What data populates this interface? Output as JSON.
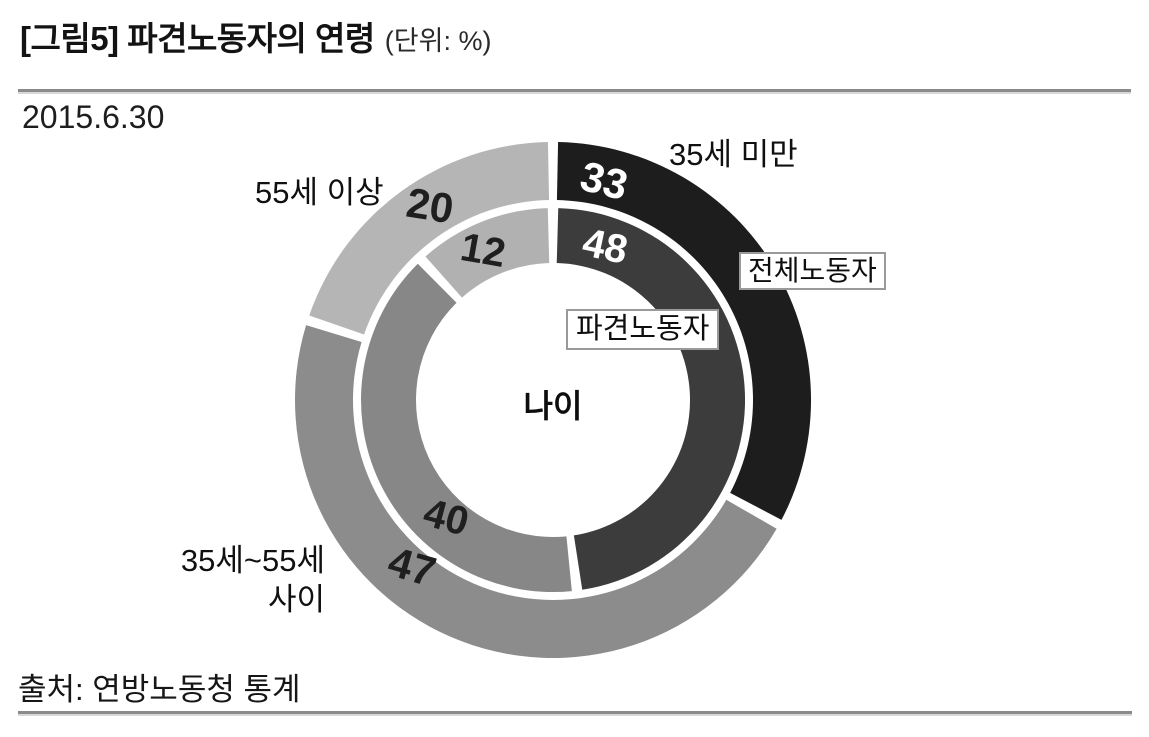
{
  "header": {
    "title": "[그림5] 파견노동자의 연령",
    "unit_note": "(단위: %)",
    "date": "2015.6.30"
  },
  "footer": {
    "source": "출처: 연방노동청 통계"
  },
  "chart_data": {
    "type": "pie",
    "subtype": "double-donut",
    "title": "파견노동자의 연령",
    "unit": "%",
    "center_label": "나이",
    "start_angle": "top",
    "direction": "clockwise",
    "categories": [
      "35세 미만",
      "35세~55세 사이",
      "55세 이상"
    ],
    "mid_label_lines": [
      "35세~55세",
      "사이"
    ],
    "series": [
      {
        "name": "전체노동자",
        "ring": "outer",
        "values": [
          33,
          47,
          20
        ]
      },
      {
        "name": "파견노동자",
        "ring": "inner",
        "values": [
          48,
          40,
          12
        ]
      }
    ],
    "colors": {
      "outer": [
        "#1d1d1d",
        "#8c8c8c",
        "#b5b5b5"
      ],
      "inner": [
        "#3c3c3c",
        "#878787",
        "#b1b1b1"
      ],
      "segment_gap": "#ffffff",
      "value_on_dark": "#ffffff",
      "value_on_light": "#1f1f1f"
    }
  }
}
